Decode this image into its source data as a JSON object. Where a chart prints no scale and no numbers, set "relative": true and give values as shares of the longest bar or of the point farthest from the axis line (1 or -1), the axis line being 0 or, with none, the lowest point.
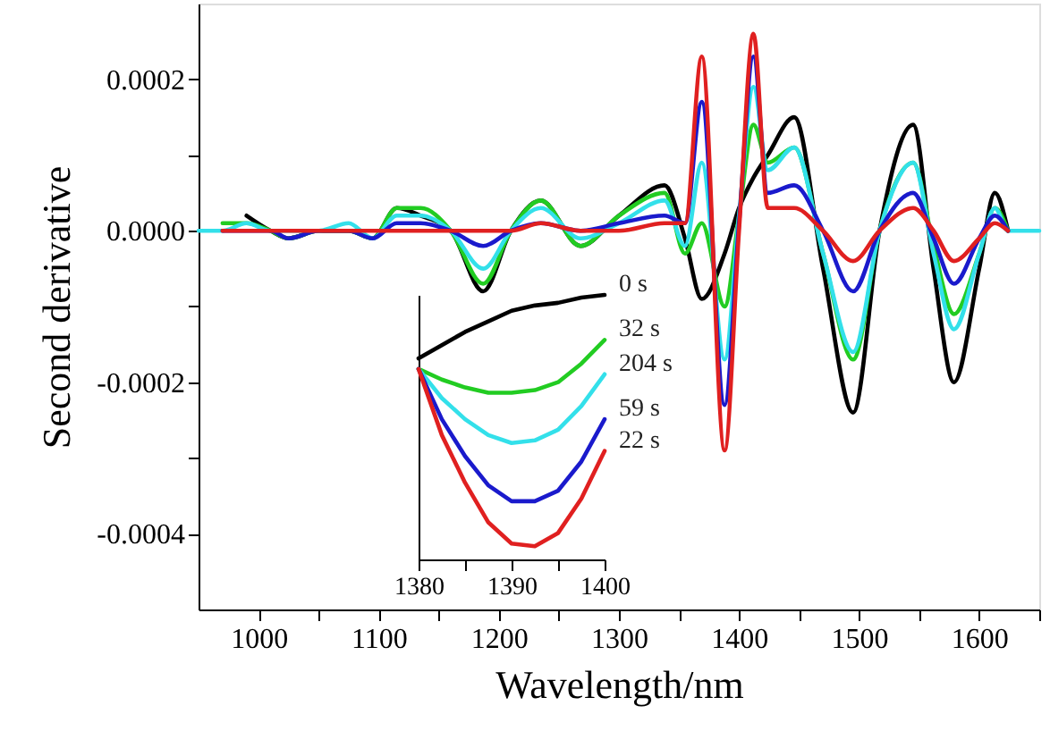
{
  "chart_data": [
    {
      "type": "line",
      "xlabel": "Wavelength/nm",
      "ylabel": "Second derivative",
      "x": [
        970,
        990,
        1010,
        1025,
        1050,
        1075,
        1095,
        1115,
        1135,
        1160,
        1187,
        1210,
        1235,
        1268,
        1300,
        1338,
        1355,
        1369,
        1388,
        1400,
        1412,
        1424,
        1446,
        1470,
        1495,
        1517,
        1545,
        1562,
        1579,
        1600,
        1613,
        1624
      ],
      "series": [
        {
          "color": "#000000",
          "values": [
            null,
            2e-05,
            0,
            -1e-05,
            0,
            0,
            -1e-05,
            3e-05,
            2e-05,
            0,
            -8e-05,
            0,
            4e-05,
            -2e-05,
            2e-05,
            6e-05,
            -1e-05,
            -9e-05,
            -3e-05,
            3e-05,
            7e-05,
            0.0001,
            0.00015,
            -5e-05,
            -0.00024,
            0,
            0.00014,
            -5e-05,
            -0.0002,
            -5e-05,
            5e-05,
            0
          ]
        },
        {
          "color": "#22cc22",
          "values": [
            1e-05,
            1e-05,
            0,
            -1e-05,
            0,
            0,
            -1e-05,
            3e-05,
            3e-05,
            0,
            -7e-05,
            0,
            4e-05,
            -2e-05,
            2e-05,
            5e-05,
            -3e-05,
            1e-05,
            -0.0001,
            2e-05,
            0.00014,
            9e-05,
            0.00011,
            -3e-05,
            -0.00017,
            0,
            9e-05,
            -2e-05,
            -0.00011,
            -3e-05,
            3e-05,
            0
          ]
        },
        {
          "color": "#33e0ea",
          "x": [
            950,
            970,
            990,
            1010,
            1025,
            1050,
            1075,
            1095,
            1115,
            1135,
            1160,
            1187,
            1210,
            1235,
            1268,
            1300,
            1338,
            1355,
            1369,
            1388,
            1400,
            1412,
            1424,
            1446,
            1470,
            1495,
            1517,
            1545,
            1562,
            1579,
            1600,
            1613,
            1624,
            1650
          ],
          "values": [
            0,
            0,
            1e-05,
            0,
            0,
            0,
            1e-05,
            -1e-05,
            2e-05,
            2e-05,
            0,
            -5e-05,
            0,
            3e-05,
            -1e-05,
            1e-05,
            4e-05,
            -2e-05,
            9e-05,
            -0.00017,
            2e-05,
            0.00019,
            8e-05,
            0.00011,
            -3e-05,
            -0.00016,
            0,
            9e-05,
            -3e-05,
            -0.00013,
            -3e-05,
            3e-05,
            0,
            0
          ]
        },
        {
          "color": "#1a1acc",
          "values": [
            0,
            0,
            0,
            -1e-05,
            0,
            0,
            -1e-05,
            1e-05,
            1e-05,
            0,
            -2e-05,
            0,
            1e-05,
            0,
            1e-05,
            2e-05,
            1e-05,
            0.00017,
            -0.00023,
            1e-05,
            0.00023,
            5e-05,
            6e-05,
            0,
            -8e-05,
            0,
            5e-05,
            -1e-05,
            -7e-05,
            -1e-05,
            2e-05,
            0
          ]
        },
        {
          "color": "#e02020",
          "values": [
            0,
            0,
            0,
            0,
            0,
            0,
            0,
            0,
            0,
            0,
            0,
            0,
            1e-05,
            0,
            0,
            1e-05,
            1e-05,
            0.00023,
            -0.00029,
            0,
            0.00026,
            3e-05,
            3e-05,
            0,
            -4e-05,
            0,
            3e-05,
            0,
            -4e-05,
            -1e-05,
            1e-05,
            0
          ]
        }
      ],
      "xlim": [
        950,
        1650
      ],
      "xticks": [
        1000,
        {
          "value": 1050,
          "label": null
        },
        1100,
        {
          "value": 1150,
          "label": null
        },
        1200,
        {
          "value": 1250,
          "label": null
        },
        1300,
        {
          "value": 1350,
          "label": null
        },
        1400,
        {
          "value": 1450,
          "label": null
        },
        1500,
        {
          "value": 1550,
          "label": null
        },
        1600,
        {
          "value": 1650,
          "label": null
        }
      ],
      "ylim": [
        -0.0005,
        0.0003
      ],
      "yticks": [
        -0.0004,
        {
          "value": -0.0003,
          "label": null
        },
        -0.0002,
        {
          "value": -0.0001,
          "label": null
        },
        {
          "value": 0,
          "label": "0.0000"
        },
        {
          "value": 0.0001,
          "label": null
        },
        0.0002
      ],
      "grid": false
    },
    {
      "type": "line",
      "relative": true,
      "x": [
        1380,
        1382.5,
        1385,
        1387.5,
        1390,
        1392.5,
        1395,
        1397.5,
        1400
      ],
      "series": [
        {
          "name": "0 s",
          "color": "#000000",
          "values": [
            0.76,
            0.81,
            0.86,
            0.9,
            0.94,
            0.96,
            0.97,
            0.99,
            1.0
          ]
        },
        {
          "name": "32 s",
          "color": "#22cc22",
          "values": [
            0.72,
            0.68,
            0.65,
            0.63,
            0.63,
            0.64,
            0.67,
            0.74,
            0.83
          ]
        },
        {
          "name": "204 s",
          "color": "#33e0ea",
          "values": [
            0.72,
            0.61,
            0.53,
            0.47,
            0.44,
            0.45,
            0.49,
            0.58,
            0.7
          ]
        },
        {
          "name": "59 s",
          "color": "#1a1acc",
          "values": [
            0.72,
            0.53,
            0.39,
            0.28,
            0.22,
            0.22,
            0.26,
            0.37,
            0.53
          ]
        },
        {
          "name": "22 s",
          "color": "#e02020",
          "values": [
            0.72,
            0.47,
            0.29,
            0.14,
            0.06,
            0.05,
            0.1,
            0.23,
            0.41
          ]
        }
      ],
      "xlim": [
        1380,
        1400
      ],
      "xticks": [
        1380,
        {
          "value": 1385,
          "label": null
        },
        1390,
        {
          "value": 1395,
          "label": null
        },
        1400
      ]
    }
  ]
}
